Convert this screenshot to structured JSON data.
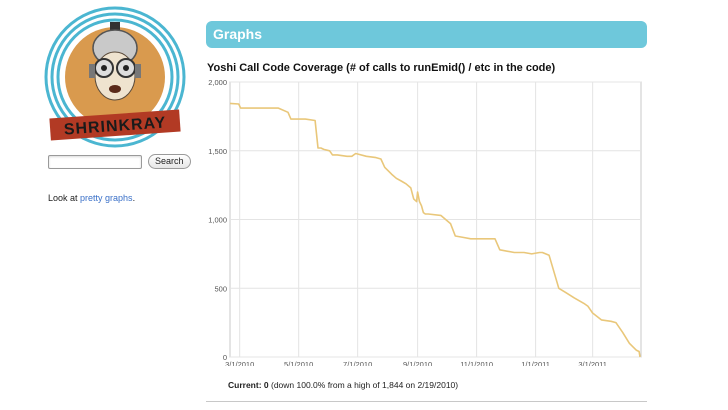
{
  "brand": {
    "logo_text": "SHRINKRAY"
  },
  "search": {
    "placeholder": "",
    "button_label": "Search"
  },
  "sidebar": {
    "prefix": "Look at ",
    "link_label": "pretty graphs",
    "suffix": "."
  },
  "header": {
    "title": "Graphs"
  },
  "current": {
    "label": "Current: 0",
    "detail": " (down 100.0% from a high of 1,844 on 2/19/2010)"
  },
  "colors": {
    "header_bg": "#6ec8db",
    "line": "#e9c77a",
    "link": "#3a70c8"
  },
  "chart_data": {
    "type": "line",
    "title": "Yoshi Call Code Coverage (# of calls to runEmid() / etc in the code)",
    "xlabel": "",
    "ylabel": "",
    "xlim": [
      "2010-02-19",
      "2011-04-20"
    ],
    "ylim": [
      0,
      2000
    ],
    "x_ticks": [
      "3/1/2010",
      "5/1/2010",
      "7/1/2010",
      "9/1/2010",
      "11/1/2010",
      "1/1/2011",
      "3/1/2011"
    ],
    "y_ticks": [
      "0",
      "500",
      "1,000",
      "1,500",
      "2,000"
    ],
    "grid": true,
    "series": [
      {
        "x": [
          "2010-02-19",
          "2010-02-28",
          "2010-03-02",
          "2010-03-20",
          "2010-04-10",
          "2010-04-20",
          "2010-04-23",
          "2010-05-08",
          "2010-05-18",
          "2010-05-21",
          "2010-05-24",
          "2010-05-27",
          "2010-06-02",
          "2010-06-05",
          "2010-06-10",
          "2010-06-20",
          "2010-06-25",
          "2010-06-29",
          "2010-07-10",
          "2010-07-20",
          "2010-07-25",
          "2010-07-29",
          "2010-08-05",
          "2010-08-10",
          "2010-08-15",
          "2010-08-20",
          "2010-08-25",
          "2010-08-28",
          "2010-08-31",
          "2010-09-01",
          "2010-09-03",
          "2010-09-05",
          "2010-09-07",
          "2010-09-09",
          "2010-09-12",
          "2010-09-25",
          "2010-10-05",
          "2010-10-10",
          "2010-10-18",
          "2010-10-26",
          "2010-10-29",
          "2010-11-10",
          "2010-11-20",
          "2010-11-25",
          "2010-12-10",
          "2010-12-20",
          "2010-12-28",
          "2011-01-05",
          "2011-01-08",
          "2011-01-15",
          "2011-01-25",
          "2011-02-01",
          "2011-02-10",
          "2011-02-20",
          "2011-02-24",
          "2011-03-01",
          "2011-03-10",
          "2011-03-20",
          "2011-03-25",
          "2011-04-01",
          "2011-04-08",
          "2011-04-15",
          "2011-04-18",
          "2011-04-19"
        ],
        "values": [
          1844,
          1840,
          1810,
          1810,
          1810,
          1780,
          1730,
          1730,
          1720,
          1520,
          1520,
          1510,
          1500,
          1470,
          1470,
          1460,
          1460,
          1480,
          1460,
          1450,
          1440,
          1380,
          1330,
          1300,
          1280,
          1260,
          1230,
          1150,
          1130,
          1200,
          1130,
          1100,
          1050,
          1040,
          1040,
          1030,
          970,
          880,
          870,
          860,
          860,
          860,
          860,
          780,
          760,
          760,
          750,
          760,
          760,
          740,
          500,
          470,
          430,
          390,
          370,
          320,
          270,
          260,
          250,
          180,
          100,
          50,
          40,
          0
        ]
      }
    ]
  }
}
